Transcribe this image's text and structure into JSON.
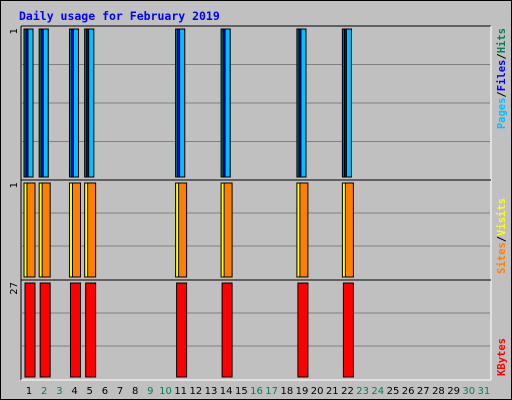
{
  "chart_data": {
    "type": "bar",
    "title": "Daily usage for February 2019",
    "categories": [
      "1",
      "2",
      "3",
      "4",
      "5",
      "6",
      "7",
      "8",
      "9",
      "10",
      "11",
      "12",
      "13",
      "14",
      "15",
      "16",
      "17",
      "18",
      "19",
      "20",
      "21",
      "22",
      "23",
      "24",
      "25",
      "26",
      "27",
      "28",
      "29",
      "30",
      "31"
    ],
    "weekend_days": [
      "2",
      "3",
      "9",
      "10",
      "16",
      "17",
      "23",
      "24",
      "30",
      "31"
    ],
    "panels": [
      {
        "name": "hits-files-pages",
        "ymax_label": "1",
        "ymax": 1,
        "series": [
          {
            "name": "Hits",
            "values": [
              1,
              1,
              0,
              1,
              1,
              0,
              0,
              0,
              0,
              0,
              1,
              0,
              0,
              1,
              0,
              0,
              0,
              0,
              1,
              0,
              0,
              1,
              0,
              0,
              0,
              0,
              0,
              0,
              0,
              0,
              0
            ]
          },
          {
            "name": "Files",
            "values": [
              1,
              1,
              0,
              1,
              1,
              0,
              0,
              0,
              0,
              0,
              1,
              0,
              0,
              1,
              0,
              0,
              0,
              0,
              1,
              0,
              0,
              1,
              0,
              0,
              0,
              0,
              0,
              0,
              0,
              0,
              0
            ]
          },
          {
            "name": "Pages",
            "values": [
              1,
              1,
              0,
              1,
              1,
              0,
              0,
              0,
              0,
              0,
              1,
              0,
              0,
              1,
              0,
              0,
              0,
              0,
              1,
              0,
              0,
              1,
              0,
              0,
              0,
              0,
              0,
              0,
              0,
              0,
              0
            ]
          }
        ]
      },
      {
        "name": "visits-sites",
        "ymax_label": "1",
        "ymax": 1,
        "series": [
          {
            "name": "Visits",
            "values": [
              1,
              1,
              0,
              1,
              1,
              0,
              0,
              0,
              0,
              0,
              1,
              0,
              0,
              1,
              0,
              0,
              0,
              0,
              1,
              0,
              0,
              1,
              0,
              0,
              0,
              0,
              0,
              0,
              0,
              0,
              0
            ]
          },
          {
            "name": "Sites",
            "values": [
              1,
              1,
              0,
              1,
              1,
              0,
              0,
              0,
              0,
              0,
              1,
              0,
              0,
              1,
              0,
              0,
              0,
              0,
              1,
              0,
              0,
              1,
              0,
              0,
              0,
              0,
              0,
              0,
              0,
              0,
              0
            ]
          }
        ]
      },
      {
        "name": "kbytes",
        "ymax_label": "27",
        "ymax": 27,
        "series": [
          {
            "name": "KBytes",
            "values": [
              27,
              27,
              0,
              27,
              27,
              0,
              0,
              0,
              0,
              0,
              27,
              0,
              0,
              27,
              0,
              0,
              0,
              0,
              27,
              0,
              0,
              27,
              0,
              0,
              0,
              0,
              0,
              0,
              0,
              0,
              0
            ]
          }
        ]
      }
    ],
    "legends": [
      {
        "items": [
          "Pages",
          "/",
          "Files",
          "/",
          "Hits"
        ]
      },
      {
        "items": [
          "Sites",
          "/",
          "Visits"
        ]
      },
      {
        "items": [
          "KBytes"
        ]
      }
    ],
    "colors": {
      "background": "#c0c0c0",
      "title": "#0000ff",
      "gridline": "#808080",
      "axis_label": "#000000",
      "weekend_label": "#00805c",
      "Hits": "#00805c",
      "Files": "#0000ff",
      "Pages": "#00c0ff",
      "Visits": "#ffff00",
      "Sites": "#ff8000",
      "KBytes": "#ff0000",
      "slash": "#000000"
    },
    "grid": true
  }
}
